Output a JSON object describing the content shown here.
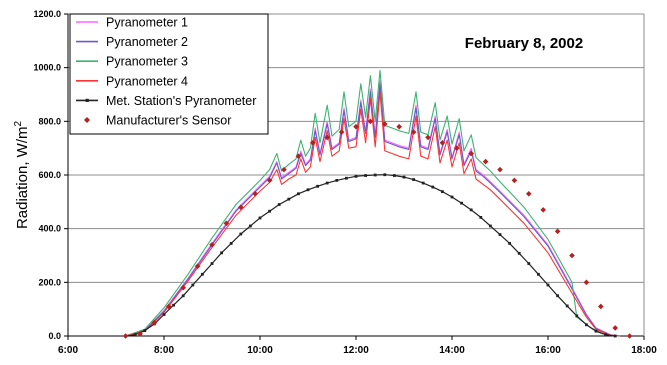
{
  "chart_data": {
    "type": "line",
    "title": "February 8, 2002",
    "ylabel": "Radiation, W/m",
    "ylabel_sup": "2",
    "xlabel": "",
    "x_range_hours": [
      6,
      18
    ],
    "ylim": [
      0,
      1200
    ],
    "grid": "horizontal",
    "legend_position": "top-left",
    "x_ticks": [
      {
        "v": 6,
        "label": "6:00"
      },
      {
        "v": 8,
        "label": "8:00"
      },
      {
        "v": 10,
        "label": "10:00"
      },
      {
        "v": 12,
        "label": "12:00"
      },
      {
        "v": 14,
        "label": "14:00"
      },
      {
        "v": 16,
        "label": "16:00"
      },
      {
        "v": 18,
        "label": "18:00"
      }
    ],
    "y_ticks": [
      {
        "v": 0,
        "label": "0.0"
      },
      {
        "v": 200,
        "label": "200.0"
      },
      {
        "v": 400,
        "label": "400.0"
      },
      {
        "v": 600,
        "label": "600.0"
      },
      {
        "v": 800,
        "label": "800.0"
      },
      {
        "v": 1000,
        "label": "1000.0"
      },
      {
        "v": 1200,
        "label": "1200.0"
      }
    ],
    "series": [
      {
        "name": "Pyranometer 1",
        "color": "#ff66ff",
        "style": "line",
        "points": [
          [
            7.2,
            0
          ],
          [
            7.6,
            22
          ],
          [
            8.0,
            95
          ],
          [
            8.5,
            215
          ],
          [
            9.0,
            345
          ],
          [
            9.5,
            470
          ],
          [
            10.0,
            560
          ],
          [
            10.2,
            595
          ],
          [
            10.35,
            650
          ],
          [
            10.45,
            590
          ],
          [
            10.6,
            610
          ],
          [
            10.75,
            630
          ],
          [
            10.85,
            690
          ],
          [
            10.95,
            640
          ],
          [
            11.05,
            660
          ],
          [
            11.15,
            775
          ],
          [
            11.25,
            680
          ],
          [
            11.4,
            800
          ],
          [
            11.5,
            700
          ],
          [
            11.65,
            720
          ],
          [
            11.75,
            850
          ],
          [
            11.85,
            730
          ],
          [
            12.0,
            740
          ],
          [
            12.1,
            880
          ],
          [
            12.2,
            760
          ],
          [
            12.3,
            920
          ],
          [
            12.4,
            745
          ],
          [
            12.5,
            950
          ],
          [
            12.6,
            730
          ],
          [
            12.75,
            720
          ],
          [
            12.9,
            710
          ],
          [
            13.0,
            705
          ],
          [
            13.1,
            700
          ],
          [
            13.25,
            860
          ],
          [
            13.35,
            710
          ],
          [
            13.5,
            700
          ],
          [
            13.65,
            820
          ],
          [
            13.75,
            680
          ],
          [
            13.9,
            770
          ],
          [
            14.0,
            665
          ],
          [
            14.15,
            760
          ],
          [
            14.25,
            640
          ],
          [
            14.4,
            700
          ],
          [
            14.5,
            620
          ],
          [
            14.65,
            600
          ],
          [
            14.8,
            575
          ],
          [
            15.0,
            540
          ],
          [
            15.5,
            450
          ],
          [
            16.0,
            340
          ],
          [
            16.5,
            180
          ],
          [
            16.8,
            80
          ],
          [
            17.0,
            30
          ],
          [
            17.3,
            5
          ],
          [
            17.5,
            0
          ]
        ]
      },
      {
        "name": "Pyranometer 2",
        "color": "#6a5acd",
        "style": "line",
        "points": [
          [
            7.2,
            0
          ],
          [
            7.6,
            20
          ],
          [
            8.0,
            92
          ],
          [
            8.5,
            212
          ],
          [
            9.0,
            340
          ],
          [
            9.5,
            465
          ],
          [
            10.0,
            555
          ],
          [
            10.2,
            590
          ],
          [
            10.35,
            645
          ],
          [
            10.45,
            585
          ],
          [
            10.6,
            605
          ],
          [
            10.75,
            625
          ],
          [
            10.85,
            680
          ],
          [
            10.95,
            635
          ],
          [
            11.05,
            655
          ],
          [
            11.15,
            765
          ],
          [
            11.25,
            675
          ],
          [
            11.4,
            790
          ],
          [
            11.5,
            695
          ],
          [
            11.65,
            715
          ],
          [
            11.75,
            840
          ],
          [
            11.85,
            725
          ],
          [
            12.0,
            735
          ],
          [
            12.1,
            870
          ],
          [
            12.2,
            755
          ],
          [
            12.3,
            910
          ],
          [
            12.4,
            740
          ],
          [
            12.5,
            940
          ],
          [
            12.6,
            725
          ],
          [
            12.75,
            715
          ],
          [
            12.9,
            705
          ],
          [
            13.0,
            700
          ],
          [
            13.1,
            695
          ],
          [
            13.25,
            850
          ],
          [
            13.35,
            705
          ],
          [
            13.5,
            695
          ],
          [
            13.65,
            810
          ],
          [
            13.75,
            675
          ],
          [
            13.9,
            760
          ],
          [
            14.0,
            660
          ],
          [
            14.15,
            750
          ],
          [
            14.25,
            635
          ],
          [
            14.4,
            690
          ],
          [
            14.5,
            615
          ],
          [
            14.65,
            595
          ],
          [
            14.8,
            570
          ],
          [
            15.0,
            535
          ],
          [
            15.5,
            445
          ],
          [
            16.0,
            335
          ],
          [
            16.5,
            175
          ],
          [
            16.8,
            78
          ],
          [
            17.0,
            28
          ],
          [
            17.3,
            4
          ],
          [
            17.5,
            0
          ]
        ]
      },
      {
        "name": "Pyranometer 3",
        "color": "#3cb371",
        "style": "line",
        "points": [
          [
            7.2,
            0
          ],
          [
            7.6,
            25
          ],
          [
            8.0,
            105
          ],
          [
            8.5,
            230
          ],
          [
            9.0,
            365
          ],
          [
            9.5,
            490
          ],
          [
            10.0,
            580
          ],
          [
            10.2,
            620
          ],
          [
            10.35,
            680
          ],
          [
            10.45,
            615
          ],
          [
            10.6,
            640
          ],
          [
            10.75,
            660
          ],
          [
            10.85,
            730
          ],
          [
            10.95,
            670
          ],
          [
            11.05,
            700
          ],
          [
            11.15,
            830
          ],
          [
            11.25,
            720
          ],
          [
            11.4,
            860
          ],
          [
            11.5,
            745
          ],
          [
            11.65,
            770
          ],
          [
            11.75,
            910
          ],
          [
            11.85,
            780
          ],
          [
            12.0,
            800
          ],
          [
            12.1,
            940
          ],
          [
            12.2,
            815
          ],
          [
            12.3,
            970
          ],
          [
            12.4,
            800
          ],
          [
            12.5,
            990
          ],
          [
            12.6,
            785
          ],
          [
            12.75,
            775
          ],
          [
            12.9,
            765
          ],
          [
            13.0,
            760
          ],
          [
            13.1,
            755
          ],
          [
            13.25,
            910
          ],
          [
            13.35,
            760
          ],
          [
            13.5,
            750
          ],
          [
            13.65,
            870
          ],
          [
            13.75,
            730
          ],
          [
            13.9,
            820
          ],
          [
            14.0,
            715
          ],
          [
            14.15,
            810
          ],
          [
            14.25,
            690
          ],
          [
            14.4,
            750
          ],
          [
            14.5,
            665
          ],
          [
            14.65,
            640
          ],
          [
            14.8,
            615
          ],
          [
            15.0,
            575
          ],
          [
            15.5,
            480
          ],
          [
            16.0,
            360
          ],
          [
            16.5,
            200
          ],
          [
            16.6,
            70
          ],
          [
            16.9,
            30
          ],
          [
            17.2,
            5
          ],
          [
            17.5,
            0
          ]
        ]
      },
      {
        "name": "Pyranometer 4",
        "color": "#ff3333",
        "style": "line",
        "points": [
          [
            7.2,
            0
          ],
          [
            7.6,
            18
          ],
          [
            8.0,
            88
          ],
          [
            8.5,
            205
          ],
          [
            9.0,
            330
          ],
          [
            9.5,
            450
          ],
          [
            10.0,
            540
          ],
          [
            10.2,
            572
          ],
          [
            10.35,
            620
          ],
          [
            10.45,
            565
          ],
          [
            10.6,
            585
          ],
          [
            10.75,
            600
          ],
          [
            10.85,
            660
          ],
          [
            10.95,
            610
          ],
          [
            11.05,
            630
          ],
          [
            11.15,
            740
          ],
          [
            11.25,
            650
          ],
          [
            11.4,
            765
          ],
          [
            11.5,
            670
          ],
          [
            11.65,
            690
          ],
          [
            11.75,
            810
          ],
          [
            11.85,
            700
          ],
          [
            12.0,
            705
          ],
          [
            12.1,
            845
          ],
          [
            12.2,
            720
          ],
          [
            12.3,
            885
          ],
          [
            12.4,
            705
          ],
          [
            12.5,
            910
          ],
          [
            12.6,
            690
          ],
          [
            12.75,
            680
          ],
          [
            12.9,
            670
          ],
          [
            13.0,
            665
          ],
          [
            13.1,
            660
          ],
          [
            13.25,
            820
          ],
          [
            13.35,
            670
          ],
          [
            13.5,
            660
          ],
          [
            13.65,
            780
          ],
          [
            13.75,
            645
          ],
          [
            13.9,
            730
          ],
          [
            14.0,
            630
          ],
          [
            14.15,
            720
          ],
          [
            14.25,
            605
          ],
          [
            14.4,
            660
          ],
          [
            14.5,
            585
          ],
          [
            14.65,
            565
          ],
          [
            14.8,
            545
          ],
          [
            15.0,
            510
          ],
          [
            15.5,
            420
          ],
          [
            16.0,
            310
          ],
          [
            16.5,
            160
          ],
          [
            16.8,
            70
          ],
          [
            17.0,
            25
          ],
          [
            17.3,
            3
          ],
          [
            17.5,
            0
          ]
        ]
      },
      {
        "name": "Met. Station's Pyranometer",
        "color": "#222222",
        "style": "line-marker",
        "points": [
          [
            7.2,
            0
          ],
          [
            7.4,
            5
          ],
          [
            7.6,
            20
          ],
          [
            7.8,
            45
          ],
          [
            8.0,
            80
          ],
          [
            8.2,
            115
          ],
          [
            8.4,
            150
          ],
          [
            8.6,
            190
          ],
          [
            8.8,
            230
          ],
          [
            9.0,
            270
          ],
          [
            9.2,
            310
          ],
          [
            9.4,
            345
          ],
          [
            9.6,
            380
          ],
          [
            9.8,
            410
          ],
          [
            10.0,
            440
          ],
          [
            10.2,
            465
          ],
          [
            10.4,
            490
          ],
          [
            10.6,
            510
          ],
          [
            10.8,
            530
          ],
          [
            11.0,
            545
          ],
          [
            11.2,
            558
          ],
          [
            11.4,
            570
          ],
          [
            11.6,
            580
          ],
          [
            11.8,
            588
          ],
          [
            12.0,
            595
          ],
          [
            12.2,
            598
          ],
          [
            12.4,
            600
          ],
          [
            12.6,
            601
          ],
          [
            12.8,
            598
          ],
          [
            13.0,
            592
          ],
          [
            13.2,
            583
          ],
          [
            13.4,
            570
          ],
          [
            13.6,
            555
          ],
          [
            13.8,
            538
          ],
          [
            14.0,
            518
          ],
          [
            14.2,
            495
          ],
          [
            14.4,
            470
          ],
          [
            14.6,
            442
          ],
          [
            14.8,
            410
          ],
          [
            15.0,
            378
          ],
          [
            15.2,
            345
          ],
          [
            15.4,
            308
          ],
          [
            15.6,
            270
          ],
          [
            15.8,
            230
          ],
          [
            16.0,
            190
          ],
          [
            16.2,
            150
          ],
          [
            16.4,
            112
          ],
          [
            16.6,
            75
          ],
          [
            16.8,
            42
          ],
          [
            17.0,
            18
          ],
          [
            17.2,
            5
          ],
          [
            17.4,
            0
          ]
        ]
      },
      {
        "name": "Manufacturer's Sensor",
        "color": "#b22222",
        "style": "marker",
        "points": [
          [
            7.2,
            0
          ],
          [
            7.5,
            8
          ],
          [
            7.8,
            50
          ],
          [
            8.1,
            110
          ],
          [
            8.4,
            180
          ],
          [
            8.7,
            260
          ],
          [
            9.0,
            340
          ],
          [
            9.3,
            420
          ],
          [
            9.6,
            480
          ],
          [
            9.9,
            530
          ],
          [
            10.2,
            580
          ],
          [
            10.5,
            620
          ],
          [
            10.8,
            670
          ],
          [
            11.1,
            720
          ],
          [
            11.4,
            740
          ],
          [
            11.7,
            760
          ],
          [
            12.0,
            780
          ],
          [
            12.3,
            800
          ],
          [
            12.6,
            790
          ],
          [
            12.9,
            780
          ],
          [
            13.2,
            760
          ],
          [
            13.5,
            740
          ],
          [
            13.8,
            720
          ],
          [
            14.1,
            700
          ],
          [
            14.4,
            680
          ],
          [
            14.7,
            650
          ],
          [
            15.0,
            620
          ],
          [
            15.3,
            580
          ],
          [
            15.6,
            530
          ],
          [
            15.9,
            470
          ],
          [
            16.2,
            390
          ],
          [
            16.5,
            300
          ],
          [
            16.8,
            200
          ],
          [
            17.1,
            110
          ],
          [
            17.4,
            30
          ],
          [
            17.7,
            0
          ]
        ]
      }
    ]
  }
}
